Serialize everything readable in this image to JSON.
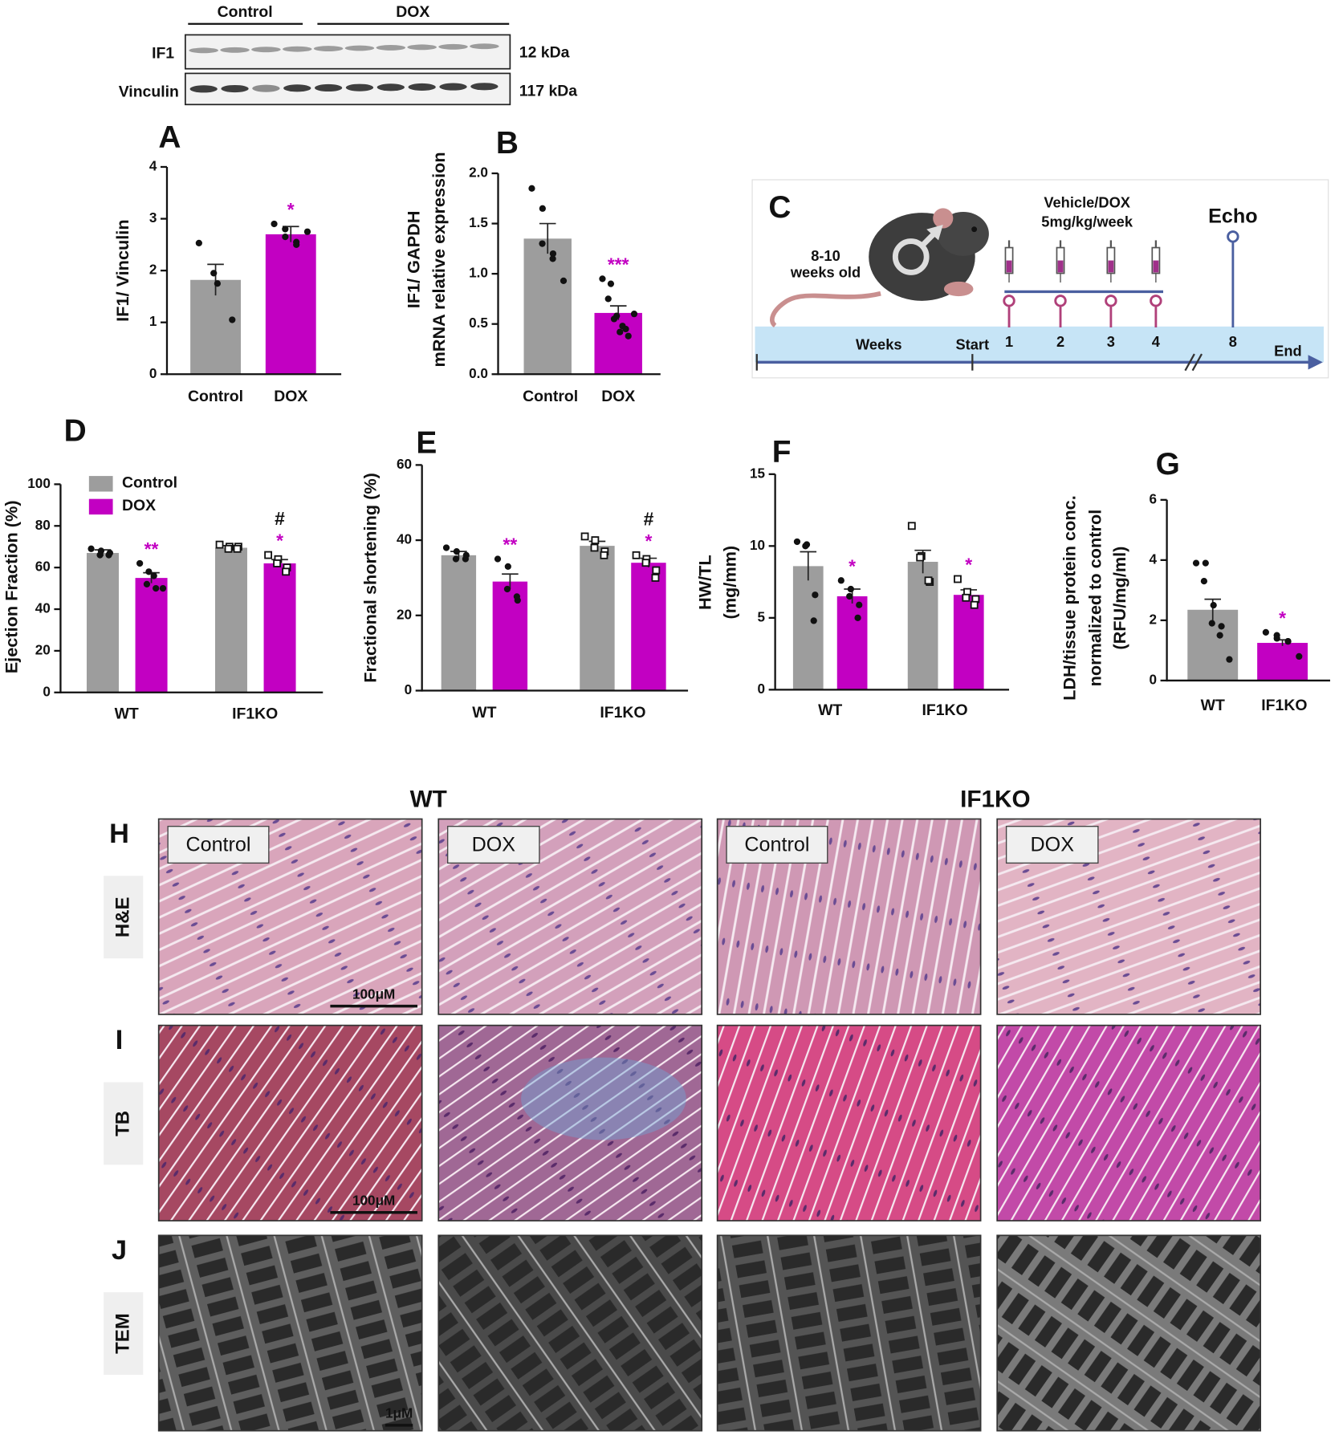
{
  "blot": {
    "groups": [
      "Control",
      "DOX"
    ],
    "bands": [
      {
        "name": "IF1",
        "size": "12 kDa"
      },
      {
        "name": "Vinculin",
        "size": "117 kDa"
      }
    ]
  },
  "chart_data": [
    {
      "type": "bar",
      "panel": "A",
      "ylabel": [
        "IF1/ Vinculin"
      ],
      "categories": [
        "Control",
        "DOX"
      ],
      "values": [
        1.82,
        2.7
      ],
      "errors": [
        0.3,
        0.15
      ],
      "colors": [
        "#9d9d9d",
        "#c200c2"
      ],
      "points": [
        [
          2.53,
          1.95,
          1.75,
          1.05
        ],
        [
          2.9,
          2.8,
          2.65,
          2.55,
          2.5,
          2.75
        ]
      ],
      "annotations": [
        [],
        [
          "*"
        ]
      ],
      "ylim": [
        0,
        4
      ],
      "yticks": [
        0,
        1,
        2,
        3,
        4
      ]
    },
    {
      "type": "bar",
      "panel": "B",
      "ylabel": [
        "IF1/ GAPDH",
        "mRNA relative expression"
      ],
      "categories": [
        "Control",
        "DOX"
      ],
      "values": [
        1.35,
        0.61
      ],
      "errors": [
        0.15,
        0.07
      ],
      "colors": [
        "#9d9d9d",
        "#c200c2"
      ],
      "points": [
        [
          1.85,
          1.65,
          1.3,
          1.2,
          1.15,
          0.93
        ],
        [
          0.95,
          0.9,
          0.75,
          0.58,
          0.55,
          0.48,
          0.42,
          0.38,
          0.45,
          0.6
        ]
      ],
      "annotations": [
        [],
        [
          "***"
        ]
      ],
      "ylim": [
        0,
        2
      ],
      "yticks": [
        {
          "value": 0,
          "label": "0.0"
        },
        {
          "value": 0.5,
          "label": "0.5"
        },
        {
          "value": 1,
          "label": "1.0"
        },
        {
          "value": 1.5,
          "label": "1.5"
        },
        {
          "value": 2,
          "label": "2.0"
        }
      ]
    },
    {
      "type": "bar",
      "panel": "D",
      "ylabel": [
        "Ejection Fraction (%)"
      ],
      "categories": [
        "WT",
        "IF1KO"
      ],
      "legend": "upper left",
      "series": [
        {
          "name": "Control",
          "color": "#9d9d9d",
          "values": [
            67,
            69.5
          ],
          "errors": [
            1.5,
            1
          ],
          "points": [
            [
              69,
              68,
              66,
              67,
              66
            ],
            [
              71,
              70,
              69,
              70,
              69
            ]
          ],
          "annotations": [
            [],
            []
          ]
        },
        {
          "name": "DOX",
          "color": "#c200c2",
          "values": [
            55,
            62
          ],
          "errors": [
            2.5,
            1.8
          ],
          "points": [
            [
              62,
              58,
              52,
              50,
              56,
              50
            ],
            [
              66,
              64,
              62,
              60,
              58
            ]
          ],
          "annotations": [
            [
              "**"
            ],
            [
              "*",
              "#"
            ]
          ]
        }
      ],
      "ylim": [
        0,
        100
      ],
      "yticks": [
        0,
        20,
        40,
        60,
        80,
        100
      ]
    },
    {
      "type": "bar",
      "panel": "E",
      "ylabel": [
        "Fractional shortening (%)"
      ],
      "categories": [
        "WT",
        "IF1KO"
      ],
      "series": [
        {
          "color": "#9d9d9d",
          "values": [
            36,
            38.5
          ],
          "errors": [
            1,
            1.2
          ],
          "points": [
            [
              38,
              37,
              35,
              36,
              35
            ],
            [
              41,
              40,
              38,
              37,
              36
            ]
          ],
          "annotations": [
            [],
            []
          ]
        },
        {
          "color": "#c200c2",
          "values": [
            29,
            34
          ],
          "errors": [
            2,
            1.2
          ],
          "points": [
            [
              35,
              33,
              27,
              24,
              25
            ],
            [
              36,
              35,
              34,
              32,
              30
            ]
          ],
          "annotations": [
            [
              "**"
            ],
            [
              "*",
              "#"
            ]
          ]
        }
      ],
      "ylim": [
        0,
        60
      ],
      "yticks": [
        0,
        20,
        40,
        60
      ]
    },
    {
      "type": "bar",
      "panel": "F",
      "ylabel": [
        "HW/TL",
        "(mg/mm)"
      ],
      "categories": [
        "WT",
        "IF1KO"
      ],
      "series": [
        {
          "color": "#9d9d9d",
          "values": [
            8.6,
            8.9
          ],
          "errors": [
            1,
            0.8
          ],
          "points": [
            [
              10.3,
              10.1,
              10.0,
              6.6,
              4.8
            ],
            [
              11.4,
              9.3,
              9.2,
              7.5,
              7.6
            ]
          ],
          "annotations": [
            [],
            []
          ]
        },
        {
          "color": "#c200c2",
          "values": [
            6.5,
            6.6
          ],
          "errors": [
            0.5,
            0.35
          ],
          "points": [
            [
              7.6,
              7.0,
              6.5,
              5.9,
              5.0
            ],
            [
              7.7,
              6.8,
              6.4,
              6.3,
              5.9
            ]
          ],
          "annotations": [
            [
              "*"
            ],
            [
              "*"
            ]
          ]
        }
      ],
      "ylim": [
        0,
        15
      ],
      "yticks": [
        0,
        5,
        10,
        15
      ]
    },
    {
      "type": "bar",
      "panel": "G",
      "ylabel": [
        "LDH/tissue protein conc.",
        "normalized to control",
        "(RFU/mg/ml)"
      ],
      "categories": [
        "WT",
        "IF1KO"
      ],
      "values": [
        2.35,
        1.25
      ],
      "errors": [
        0.35,
        0.1
      ],
      "colors": [
        "#9d9d9d",
        "#c200c2"
      ],
      "points": [
        [
          3.9,
          3.9,
          3.3,
          2.5,
          1.9,
          1.8,
          1.5,
          0.7
        ],
        [
          1.6,
          1.5,
          1.4,
          1.3,
          1.3,
          0.8
        ]
      ],
      "annotations": [
        [],
        [
          "*"
        ]
      ],
      "ylim": [
        0,
        6
      ],
      "yticks": [
        0,
        2,
        4,
        6
      ]
    }
  ],
  "timeline": {
    "panel": "C",
    "age": [
      "8-10",
      "weeks old"
    ],
    "treatment": [
      "Vehicle/DOX",
      "5mg/kg/week"
    ],
    "endpoint": "Echo",
    "axis_label": "Weeks",
    "start": "Start",
    "weeks": [
      "1",
      "2",
      "3",
      "4",
      "8"
    ],
    "end": "End"
  },
  "histology": {
    "groups": [
      "WT",
      "IF1KO"
    ],
    "conditions": [
      "Control",
      "DOX",
      "Control",
      "DOX"
    ],
    "rows": [
      {
        "letter": "H",
        "stain": "H&E",
        "scale": "100μM"
      },
      {
        "letter": "I",
        "stain": "TB",
        "scale": "100μM"
      },
      {
        "letter": "J",
        "stain": "TEM",
        "scale": "1μM"
      }
    ]
  }
}
